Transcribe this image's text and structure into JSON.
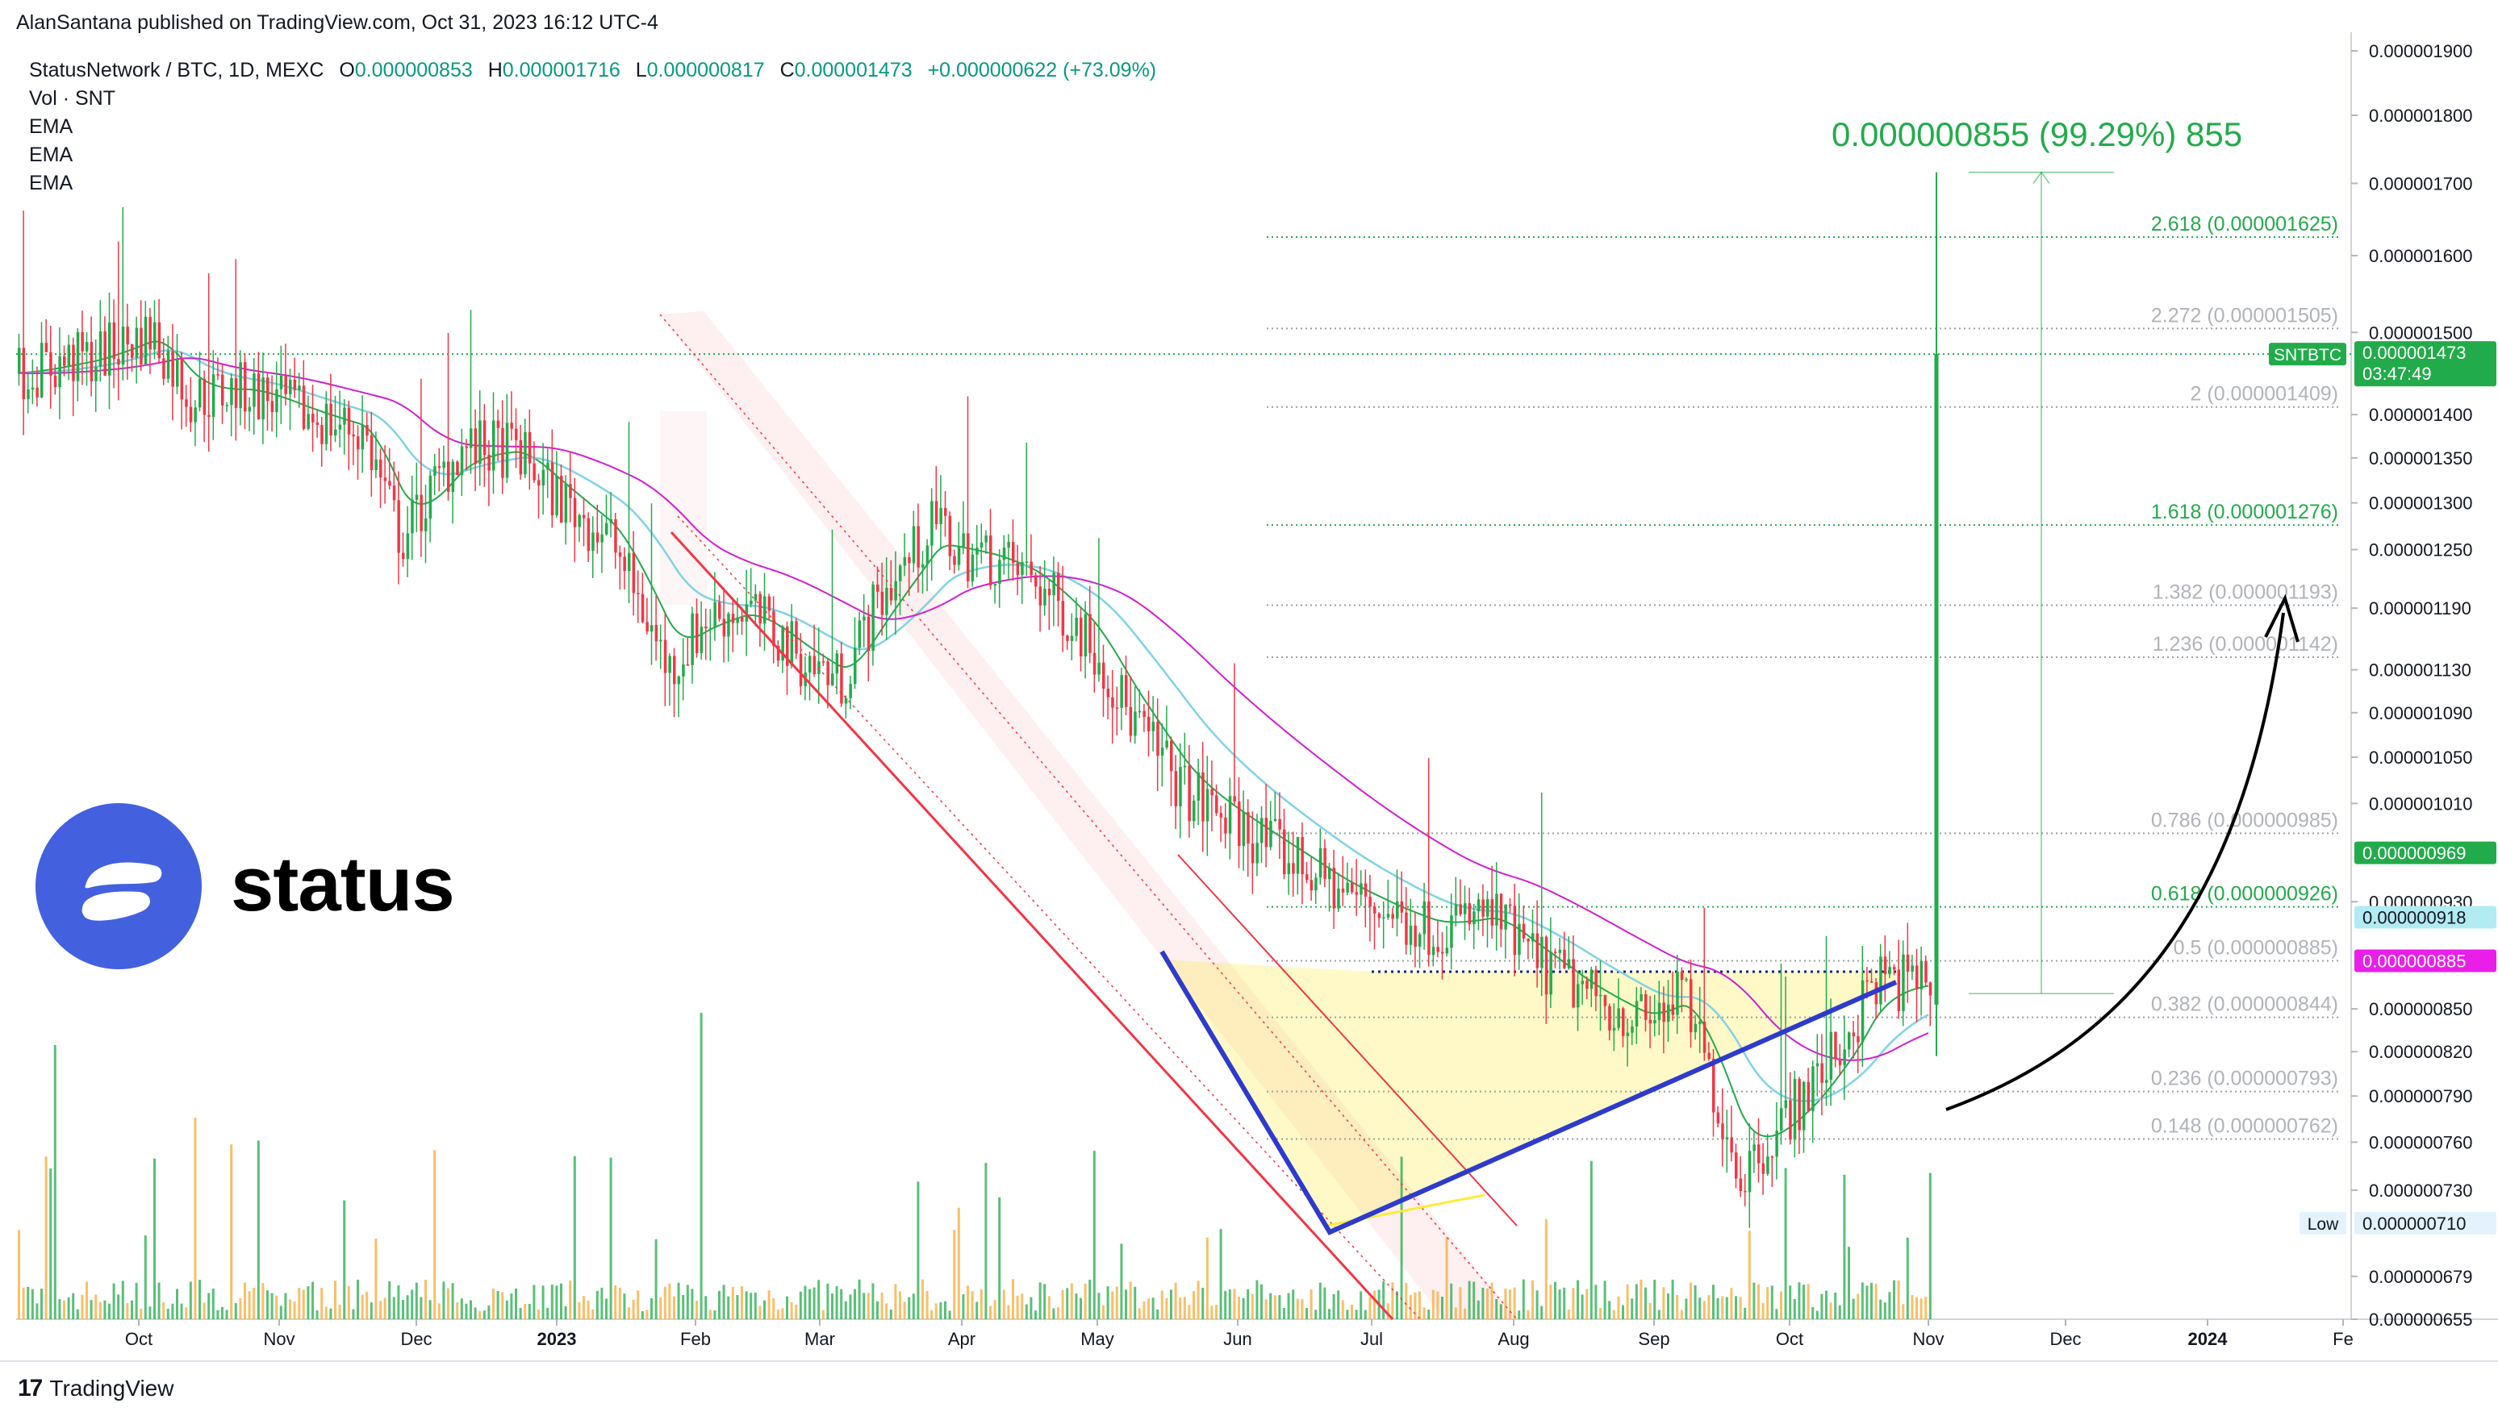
{
  "header": {
    "published_by": "AlanSantana published on TradingView.com, Oct 31, 2023 16:12 UTC-4"
  },
  "legend": {
    "symbol": "StatusNetwork / BTC, 1D, MEXC",
    "o_label": "O",
    "o_value": "0.000000853",
    "h_label": "H",
    "h_value": "0.000001716",
    "l_label": "L",
    "l_value": "0.000000817",
    "c_label": "C",
    "c_value": "0.000001473",
    "change": "+0.000000622 (+73.09%)",
    "indicators": [
      "Vol · SNT",
      "EMA",
      "EMA",
      "EMA"
    ]
  },
  "logo": {
    "word": "status"
  },
  "measure_label": "0.000000855 (99.29%) 855",
  "footer": {
    "brand": "TradingView"
  },
  "colors": {
    "up": "#22ab4a",
    "down": "#f23645",
    "ema_fast": "#22ab4a",
    "ema_mid": "#7fd3e6",
    "ema_slow": "#d11fd1",
    "channel": "#f23645",
    "triangle": "#2d3bcc",
    "fib_green": "#22ab4a",
    "fib_gray": "#9aa0a6",
    "status_blue": "#4360df"
  },
  "chart_data": {
    "type": "candlestick",
    "symbol": "SNTBTC",
    "interval": "1D",
    "exchange": "MEXC",
    "x_axis_labels": [
      "Oct",
      "Nov",
      "Dec",
      "2023",
      "Feb",
      "Mar",
      "Apr",
      "May",
      "Jun",
      "Jul",
      "Aug",
      "Sep",
      "Oct",
      "Nov",
      "Dec",
      "2024",
      "Fe"
    ],
    "y_axis_labels": [
      "0.000001900",
      "0.000001800",
      "0.000001700",
      "0.000001600",
      "0.000001500",
      "0.000001400",
      "0.000001350",
      "0.000001300",
      "0.000001250",
      "0.000001190",
      "0.000001130",
      "0.000001090",
      "0.000001050",
      "0.000001010",
      "0.000000930",
      "0.000000850",
      "0.000000820",
      "0.000000790",
      "0.000000760",
      "0.000000730",
      "0.000000679",
      "0.000000655"
    ],
    "y_scale": "log",
    "ylim": [
      6.55e-07,
      1.93e-06
    ],
    "last_price": {
      "label": "SNTBTC",
      "value": "0.000001473",
      "countdown": "03:47:49"
    },
    "price_tags": [
      {
        "value": "0.000000969",
        "color": "#22ab4a"
      },
      {
        "value": "0.000000918",
        "color": "#b2ebf2"
      },
      {
        "value": "0.000000885",
        "color": "#e91ee9"
      }
    ],
    "low_tag": {
      "label": "Low",
      "value": "0.000000710"
    },
    "fib_levels": [
      {
        "ratio": "2.618",
        "label": "2.618 (0.000001625)",
        "price": 1.625e-06,
        "highlight": true
      },
      {
        "ratio": "2.272",
        "label": "2.272 (0.000001505)",
        "price": 1.505e-06,
        "highlight": false
      },
      {
        "ratio": "2",
        "label": "2 (0.000001409)",
        "price": 1.409e-06,
        "highlight": false
      },
      {
        "ratio": "1.618",
        "label": "1.618 (0.000001276)",
        "price": 1.276e-06,
        "highlight": true
      },
      {
        "ratio": "1.382",
        "label": "1.382 (0.000001193)",
        "price": 1.193e-06,
        "highlight": false
      },
      {
        "ratio": "1.236",
        "label": "1.236 (0.000001142)",
        "price": 1.142e-06,
        "highlight": false
      },
      {
        "ratio": "0.786",
        "label": "0.786 (0.000000985)",
        "price": 9.85e-07,
        "highlight": false
      },
      {
        "ratio": "0.618",
        "label": "0.618 (0.000000926)",
        "price": 9.26e-07,
        "highlight": true
      },
      {
        "ratio": "0.5",
        "label": "0.5 (0.000000885)",
        "price": 8.85e-07,
        "highlight": false
      },
      {
        "ratio": "0.382",
        "label": "0.382 (0.000000844)",
        "price": 8.44e-07,
        "highlight": false
      },
      {
        "ratio": "0.236",
        "label": "0.236 (0.000000793)",
        "price": 7.93e-07,
        "highlight": false
      },
      {
        "ratio": "0.148",
        "label": "0.148 (0.000000762)",
        "price": 7.62e-07,
        "highlight": false
      }
    ],
    "price_path": [
      [
        0,
        1.45e-06
      ],
      [
        0.04,
        1.47e-06
      ],
      [
        0.07,
        1.5e-06
      ],
      [
        0.09,
        1.42e-06
      ],
      [
        0.12,
        1.43e-06
      ],
      [
        0.15,
        1.4e-06
      ],
      [
        0.18,
        1.38e-06
      ],
      [
        0.2,
        1.26e-06
      ],
      [
        0.23,
        1.36e-06
      ],
      [
        0.26,
        1.36e-06
      ],
      [
        0.28,
        1.31e-06
      ],
      [
        0.31,
        1.26e-06
      ],
      [
        0.34,
        1.13e-06
      ],
      [
        0.36,
        1.18e-06
      ],
      [
        0.38,
        1.19e-06
      ],
      [
        0.41,
        1.14e-06
      ],
      [
        0.43,
        1.12e-06
      ],
      [
        0.45,
        1.2e-06
      ],
      [
        0.48,
        1.28e-06
      ],
      [
        0.49,
        1.25e-06
      ],
      [
        0.51,
        1.24e-06
      ],
      [
        0.53,
        1.22e-06
      ],
      [
        0.56,
        1.16e-06
      ],
      [
        0.58,
        1.09e-06
      ],
      [
        0.61,
        1.02e-06
      ],
      [
        0.64,
        9.9e-07
      ],
      [
        0.67,
        9.6e-07
      ],
      [
        0.69,
        9.4e-07
      ],
      [
        0.72,
        9.2e-07
      ],
      [
        0.74,
        9.1e-07
      ],
      [
        0.77,
        9.2e-07
      ],
      [
        0.79,
        8.9e-07
      ],
      [
        0.82,
        8.6e-07
      ],
      [
        0.85,
        8.4e-07
      ],
      [
        0.87,
        8.6e-07
      ],
      [
        0.88,
        8.2e-07
      ],
      [
        0.9,
        7.4e-07
      ],
      [
        0.92,
        7.7e-07
      ],
      [
        0.94,
        8e-07
      ],
      [
        0.96,
        8.4e-07
      ],
      [
        0.97,
        8.7e-07
      ],
      [
        0.985,
        8.7e-07
      ],
      [
        1.0,
        8.7e-07
      ]
    ],
    "price_path_note_x": "x as fraction of the time span from the first visible candle to the last",
    "volume_axis_note": "volume bars along the bottom, values not printed"
  }
}
